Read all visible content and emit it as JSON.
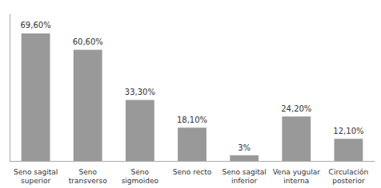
{
  "chart_data": {
    "type": "bar",
    "categories": [
      "Seno sagital\nsuperior",
      "Seno\ntransverso",
      "Seno\nsigmoideo",
      "Seno recto",
      "Seno sagital\ninferior",
      "Vena yugular\ninterna",
      "Circulación\nposterior"
    ],
    "values": [
      69.6,
      60.6,
      33.3,
      18.1,
      3.0,
      24.2,
      12.1
    ],
    "value_labels": [
      "69,60%",
      "60,60%",
      "33,30%",
      "18,10%",
      "3%",
      "24,20%",
      "12,10%"
    ],
    "color": "#999999",
    "ylim": [
      0,
      80
    ],
    "grid": false,
    "tick_labels": "x"
  }
}
